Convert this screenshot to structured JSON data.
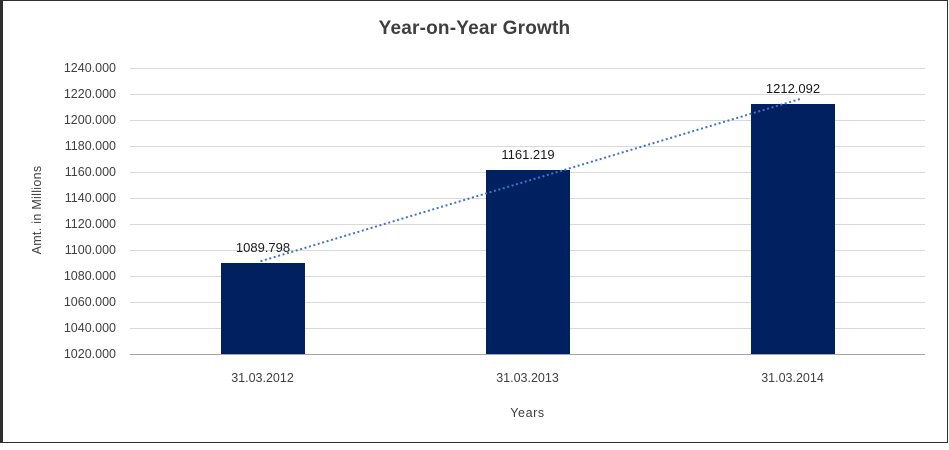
{
  "chart_data": {
    "type": "bar",
    "title": "Year-on-Year Growth",
    "categories": [
      "31.03.2012",
      "31.03.2013",
      "31.03.2014"
    ],
    "values": [
      1089.798,
      1161.219,
      1212.092
    ],
    "data_labels": [
      "1089.798",
      "1161.219",
      "1212.092"
    ],
    "xlabel": "Years",
    "ylabel": "Amt. in Millions",
    "ylim": [
      1020,
      1240
    ],
    "ytick_step": 20,
    "ytick_decimals": 3,
    "grid": true,
    "legend": "none",
    "bar_color": "#002060",
    "trendline": {
      "type": "linear",
      "style": "dotted",
      "color": "#3f74c8"
    },
    "gridline_color": "#d9d9d9",
    "axis_line_color": "#a6a6a6",
    "text_color": "#404040",
    "title_color": "#3f3f3f"
  }
}
